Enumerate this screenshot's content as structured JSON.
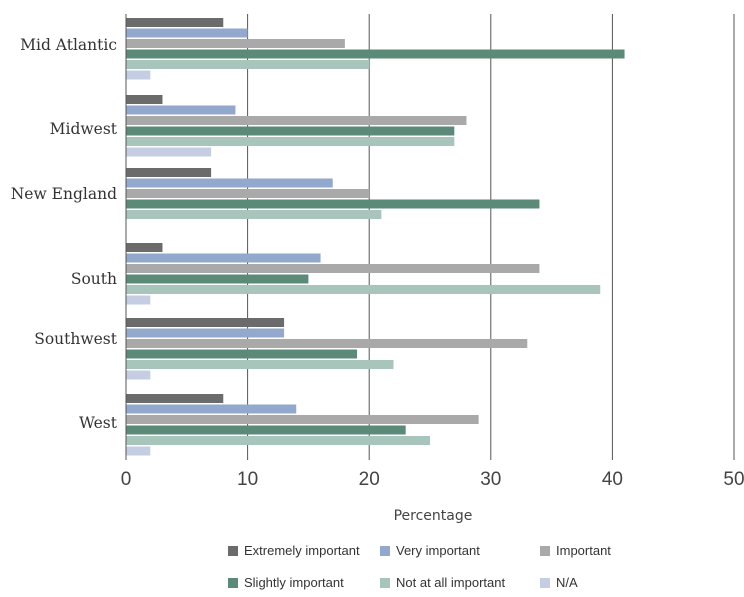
{
  "chart_data": {
    "type": "bar",
    "orientation": "horizontal",
    "title": "",
    "xlabel": "Percentage",
    "ylabel": "",
    "xlim": [
      0,
      50
    ],
    "x_ticks": [
      0,
      10,
      20,
      30,
      40,
      50
    ],
    "grid": "vertical",
    "legend_placement": "bottom",
    "categories": [
      "Mid Atlantic",
      "Midwest",
      "New England",
      "South",
      "Southwest",
      "West"
    ],
    "series": [
      {
        "name": "Extremely important",
        "color": "#6b6b6b",
        "values": [
          8,
          3,
          7,
          3,
          13,
          8
        ]
      },
      {
        "name": "Very important",
        "color": "#92a8cc",
        "values": [
          10,
          9,
          17,
          16,
          13,
          14
        ]
      },
      {
        "name": "Important",
        "color": "#a9a9a9",
        "values": [
          18,
          28,
          20,
          34,
          33,
          29
        ]
      },
      {
        "name": "Slightly important",
        "color": "#5b8a78",
        "values": [
          41,
          27,
          34,
          15,
          19,
          23
        ]
      },
      {
        "name": "Not at all important",
        "color": "#a8c5bb",
        "values": [
          20,
          27,
          21,
          39,
          22,
          25
        ]
      },
      {
        "name": "N/A",
        "color": "#c5cde3",
        "values": [
          2,
          7,
          0,
          2,
          2,
          2
        ]
      }
    ]
  }
}
